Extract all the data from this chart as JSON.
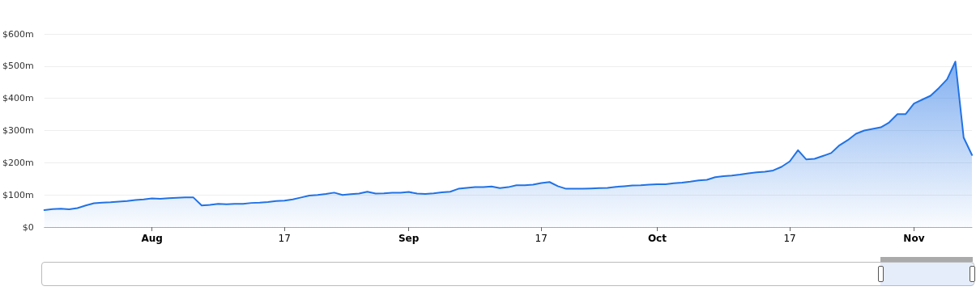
{
  "chart_data": {
    "type": "area",
    "color": "#2172e5",
    "x": [
      "--07-19",
      "--07-20",
      "--07-21",
      "--07-22",
      "--07-23",
      "--07-24",
      "--07-25",
      "--07-26",
      "--07-27",
      "--07-28",
      "--07-29",
      "--07-30",
      "--07-31",
      "--08-01",
      "--08-02",
      "--08-03",
      "--08-04",
      "--08-05",
      "--08-06",
      "--08-07",
      "--08-08",
      "--08-09",
      "--08-10",
      "--08-11",
      "--08-12",
      "--08-13",
      "--08-14",
      "--08-15",
      "--08-16",
      "--08-17",
      "--08-18",
      "--08-19",
      "--08-20",
      "--08-21",
      "--08-22",
      "--08-23",
      "--08-24",
      "--08-25",
      "--08-26",
      "--08-27",
      "--08-28",
      "--08-29",
      "--08-30",
      "--08-31",
      "--09-01",
      "--09-02",
      "--09-03",
      "--09-04",
      "--09-05",
      "--09-06",
      "--09-07",
      "--09-08",
      "--09-09",
      "--09-10",
      "--09-11",
      "--09-12",
      "--09-13",
      "--09-14",
      "--09-15",
      "--09-16",
      "--09-17",
      "--09-18",
      "--09-19",
      "--09-20",
      "--09-21",
      "--09-22",
      "--09-23",
      "--09-24",
      "--09-25",
      "--09-26",
      "--09-27",
      "--09-28",
      "--09-29",
      "--09-30",
      "--10-01",
      "--10-02",
      "--10-03",
      "--10-04",
      "--10-05",
      "--10-06",
      "--10-07",
      "--10-08",
      "--10-09",
      "--10-10",
      "--10-11",
      "--10-12",
      "--10-13",
      "--10-14",
      "--10-15",
      "--10-16",
      "--10-17",
      "--10-18",
      "--10-19",
      "--10-20",
      "--10-21",
      "--10-22",
      "--10-23",
      "--10-24",
      "--10-25",
      "--10-26",
      "--10-27",
      "--10-28",
      "--10-29",
      "--10-30",
      "--10-31",
      "--11-01",
      "--11-02",
      "--11-03",
      "--11-04",
      "--11-05",
      "--11-06",
      "--11-07",
      "--11-08"
    ],
    "values": [
      53,
      56,
      57,
      55,
      59,
      67,
      74,
      76,
      77,
      79,
      81,
      84,
      86,
      89,
      88,
      90,
      91,
      92,
      92,
      67,
      69,
      72,
      71,
      72,
      72,
      75,
      76,
      78,
      81,
      82,
      86,
      92,
      98,
      100,
      103,
      107,
      100,
      102,
      104,
      110,
      104,
      105,
      107,
      107,
      109,
      104,
      103,
      105,
      108,
      110,
      119,
      122,
      124,
      124,
      126,
      121,
      124,
      130,
      130,
      132,
      137,
      140,
      127,
      119,
      119,
      119,
      120,
      121,
      122,
      125,
      127,
      129,
      130,
      132,
      133,
      133,
      136,
      138,
      141,
      145,
      147,
      155,
      158,
      160,
      163,
      167,
      170,
      172,
      176,
      187,
      204,
      239,
      210,
      212,
      221,
      230,
      254,
      270,
      290,
      300,
      305,
      310,
      325,
      351,
      351,
      384,
      396,
      408,
      432,
      459,
      514,
      278,
      224
    ],
    "xlim": [
      "--07-19",
      "--11-08"
    ],
    "xticks": [
      {
        "value": "--08-01",
        "label": "Aug"
      },
      {
        "value": "--08-17",
        "label": "17"
      },
      {
        "value": "--09-01",
        "label": "Sep"
      },
      {
        "value": "--09-17",
        "label": "17"
      },
      {
        "value": "--10-01",
        "label": "Oct"
      },
      {
        "value": "--10-17",
        "label": "17"
      },
      {
        "value": "--11-01",
        "label": "Nov"
      }
    ],
    "ylim": [
      0,
      600
    ],
    "yticks": [
      {
        "value": 0,
        "label": "$0"
      },
      {
        "value": 100,
        "label": "$100m"
      },
      {
        "value": 200,
        "label": "$200m"
      },
      {
        "value": 300,
        "label": "$300m"
      },
      {
        "value": 400,
        "label": "$400m"
      },
      {
        "value": 500,
        "label": "$500m"
      },
      {
        "value": 600,
        "label": "$600m"
      }
    ],
    "grid": "y",
    "marker": "none",
    "line_style": "solid"
  }
}
